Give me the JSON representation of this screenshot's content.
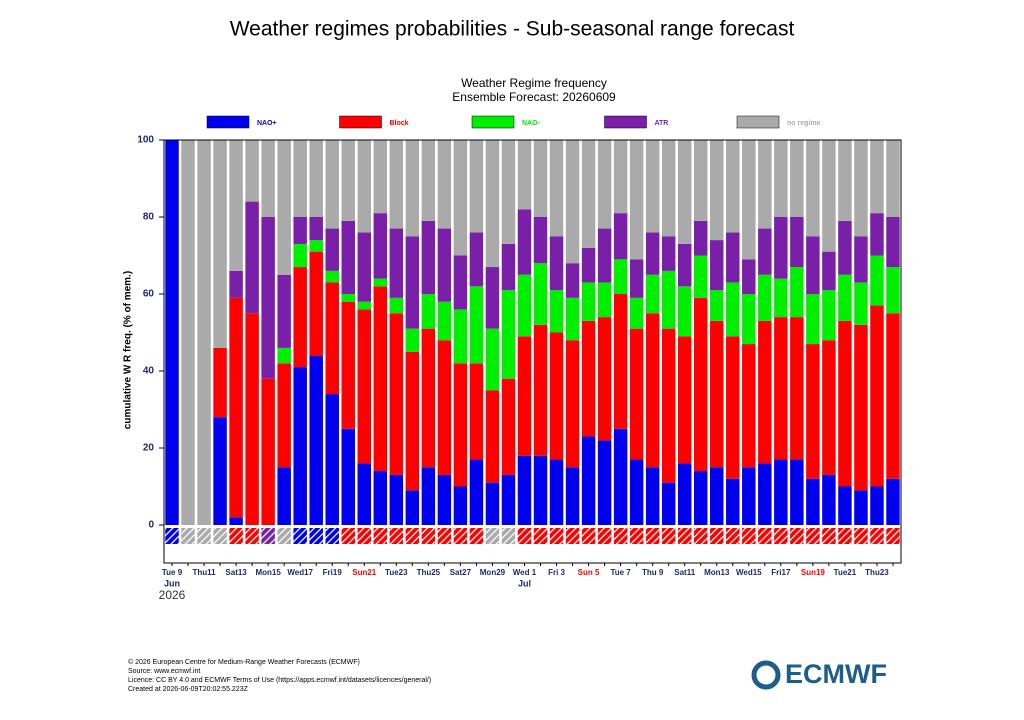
{
  "page_title": "Weather regimes probabilities - Sub-seasonal range forecast",
  "chart_data": {
    "type": "stacked-bar",
    "title": "Weather Regime frequency",
    "subtitle": "Ensemble Forecast: 20260609",
    "y_label": "cumulative W R freq. (% of mem.)",
    "categories": [
      "Tue 9",
      null,
      "Thu11",
      null,
      "Sat13",
      null,
      "Mon15",
      null,
      "Wed17",
      null,
      "Fri19",
      null,
      "Sun21",
      null,
      "Tue23",
      null,
      "Thu25",
      null,
      "Sat27",
      null,
      "Mon29",
      null,
      "Wed 1",
      null,
      "Fri 3",
      null,
      "Sun 5",
      null,
      "Tue 7",
      null,
      "Thu 9",
      null,
      "Sat11",
      null,
      "Mon13",
      null,
      "Wed15",
      null,
      "Fri17",
      null,
      "Sun19",
      null,
      "Tue21",
      null,
      "Thu23",
      null
    ],
    "highlighted_categories": [
      12,
      26,
      40
    ],
    "highlight_color": "#ff0000",
    "x_sublabels": [
      {
        "at": 0,
        "label": "Jun"
      },
      {
        "at": 22,
        "label": "Jul"
      }
    ],
    "year_label": "2026",
    "ylim": [
      0,
      100
    ],
    "yticks": [
      0,
      20,
      40,
      60,
      80,
      100
    ],
    "series": [
      {
        "name": "NAO+",
        "color": "#0000ee",
        "values": [
          100,
          0,
          0,
          28,
          2,
          0,
          0,
          15,
          41,
          44,
          34,
          25,
          16,
          14,
          13,
          9,
          15,
          13,
          10,
          17,
          11,
          13,
          18,
          18,
          17,
          15,
          23,
          22,
          25,
          17,
          15,
          11,
          16,
          14,
          15,
          12,
          15,
          16,
          17,
          17,
          12,
          13,
          10,
          9,
          10,
          12
        ]
      },
      {
        "name": "Block",
        "color": "#ff0000",
        "values": [
          0,
          0,
          0,
          18,
          57,
          55,
          38,
          27,
          26,
          27,
          29,
          33,
          40,
          48,
          42,
          36,
          36,
          35,
          32,
          25,
          24,
          25,
          31,
          34,
          33,
          33,
          30,
          32,
          35,
          34,
          40,
          40,
          33,
          45,
          38,
          37,
          32,
          37,
          37,
          37,
          35,
          35,
          43,
          43,
          47,
          43
        ]
      },
      {
        "name": "NAO-",
        "color": "#00ee00",
        "values": [
          0,
          0,
          0,
          0,
          0,
          0,
          0,
          4,
          6,
          3,
          3,
          2,
          2,
          2,
          4,
          6,
          9,
          10,
          14,
          20,
          16,
          23,
          16,
          16,
          11,
          11,
          10,
          9,
          9,
          8,
          10,
          15,
          13,
          11,
          8,
          14,
          13,
          12,
          10,
          13,
          13,
          13,
          12,
          11,
          13,
          12
        ]
      },
      {
        "name": "ATR",
        "color": "#7a1fa8",
        "values": [
          0,
          0,
          0,
          0,
          7,
          29,
          42,
          19,
          7,
          6,
          11,
          19,
          18,
          17,
          18,
          24,
          19,
          19,
          14,
          14,
          16,
          12,
          17,
          12,
          14,
          9,
          9,
          14,
          12,
          10,
          11,
          9,
          11,
          9,
          13,
          13,
          9,
          12,
          16,
          13,
          15,
          10,
          14,
          12,
          11,
          13
        ]
      },
      {
        "name": "no regime",
        "color": "#aaaaaa",
        "values": [
          0,
          100,
          100,
          54,
          34,
          16,
          20,
          35,
          20,
          20,
          23,
          21,
          24,
          19,
          23,
          25,
          21,
          23,
          30,
          24,
          33,
          27,
          18,
          20,
          25,
          32,
          28,
          23,
          19,
          31,
          24,
          25,
          27,
          21,
          26,
          24,
          31,
          23,
          20,
          20,
          25,
          29,
          21,
          25,
          19,
          20
        ]
      }
    ]
  },
  "footer": [
    "© 2026 European Centre for Medium-Range Weather Forecasts (ECMWF)",
    "Source: www.ecmwf.int",
    "Licence: CC BY 4.0 and ECMWF Terms of Use (https://apps.ecmwf.int/datasets/licences/general/)",
    "Created at 2026-06-09T20:02:55.223Z"
  ],
  "logo": "ECMWF"
}
